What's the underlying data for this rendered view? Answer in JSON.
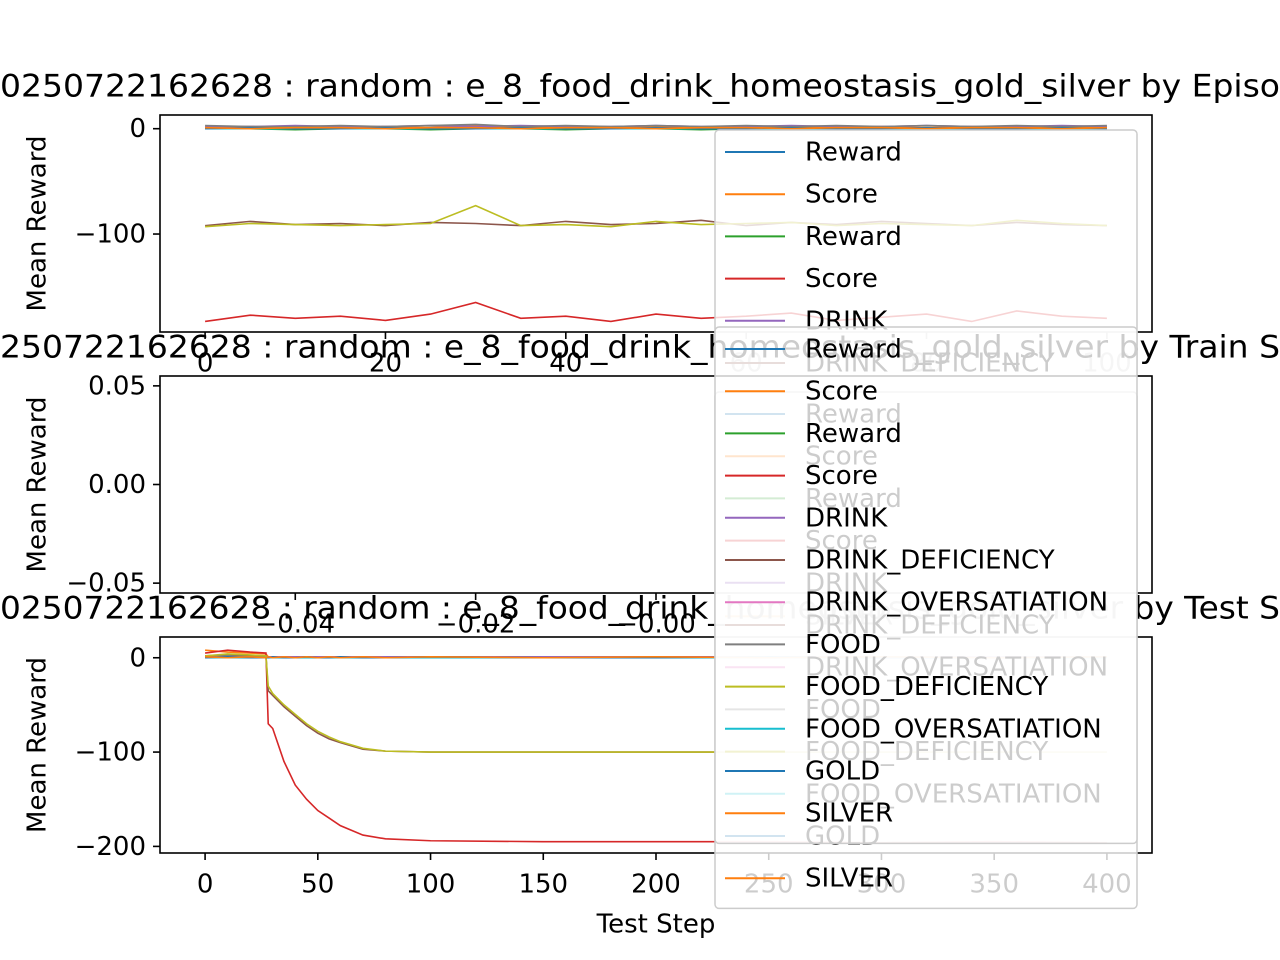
{
  "chart_data": [
    {
      "type": "line",
      "title": "0250722162628 : random : e_8_food_drink_homeostasis_gold_silver by Episo",
      "ylabel": "Mean Reward",
      "x": [
        0,
        5,
        10,
        15,
        20,
        25,
        30,
        35,
        40,
        45,
        50,
        55,
        60,
        65,
        70,
        75,
        80,
        85,
        90,
        95,
        100
      ],
      "xlim": [
        -5,
        105
      ],
      "xticks": [
        0,
        20,
        40,
        60,
        80,
        100
      ],
      "ylim": [
        -193,
        13
      ],
      "yticks": [
        0,
        {
          "value": -100,
          "label": "−100"
        }
      ],
      "legend": "upper right",
      "series": [
        {
          "name": "Reward",
          "color": "#1f77b4",
          "values": [
            0,
            1,
            0,
            1,
            0,
            1,
            2,
            0,
            1,
            0,
            1,
            0,
            1,
            2,
            0,
            1,
            0,
            1,
            0,
            1,
            1
          ]
        },
        {
          "name": "Score",
          "color": "#ff7f0e",
          "values": [
            1,
            2,
            1,
            1,
            2,
            1,
            3,
            1,
            2,
            1,
            2,
            1,
            1,
            2,
            1,
            2,
            1,
            2,
            1,
            1,
            2
          ]
        },
        {
          "name": "Reward",
          "color": "#2ca02c",
          "values": [
            0,
            0,
            -1,
            0,
            0,
            -1,
            0,
            0,
            -1,
            0,
            0,
            -1,
            0,
            0,
            -1,
            0,
            0,
            -1,
            0,
            0,
            -1
          ]
        },
        {
          "name": "Score",
          "color": "#d62728",
          "values": [
            -183,
            -177,
            -180,
            -178,
            -182,
            -176,
            -165,
            -180,
            -178,
            -183,
            -176,
            -180,
            -178,
            -175,
            -182,
            -179,
            -176,
            -183,
            -173,
            -178,
            -180
          ]
        },
        {
          "name": "DRINK",
          "color": "#9467bd",
          "values": [
            2,
            2,
            3,
            2,
            2,
            3,
            2,
            3,
            2,
            2,
            3,
            2,
            2,
            3,
            2,
            2,
            3,
            2,
            2,
            3,
            2
          ]
        },
        {
          "name": "DRINK_DEFICIENCY",
          "color": "#8c564b",
          "values": [
            -92,
            -88,
            -91,
            -90,
            -92,
            -89,
            -90,
            -92,
            -88,
            -91,
            -90,
            -87,
            -92,
            -89,
            -91,
            -88,
            -90,
            -92,
            -89,
            -91,
            -92
          ]
        },
        {
          "name": "DRINK_OVERSATIATION",
          "color": "#e377c2",
          "values": [
            0,
            0,
            0,
            0,
            0,
            0,
            0,
            0,
            0,
            0,
            0,
            0,
            0,
            0,
            0,
            0,
            0,
            0,
            0,
            0,
            0
          ]
        },
        {
          "name": "FOOD",
          "color": "#7f7f7f",
          "values": [
            3,
            2,
            2,
            3,
            2,
            3,
            4,
            2,
            3,
            2,
            3,
            2,
            3,
            2,
            3,
            2,
            3,
            2,
            3,
            2,
            3
          ]
        },
        {
          "name": "FOOD_DEFICIENCY",
          "color": "#bcbd22",
          "values": [
            -93,
            -90,
            -91,
            -92,
            -91,
            -90,
            -73,
            -92,
            -91,
            -93,
            -88,
            -91,
            -90,
            -89,
            -92,
            -90,
            -91,
            -92,
            -87,
            -90,
            -92
          ]
        },
        {
          "name": "FOOD_OVERSATIATION",
          "color": "#17becf",
          "values": [
            0,
            0,
            0,
            0,
            0,
            0,
            0,
            0,
            0,
            0,
            0,
            0,
            0,
            0,
            0,
            0,
            0,
            0,
            0,
            0,
            0
          ]
        },
        {
          "name": "GOLD",
          "color": "#1f77b4",
          "values": [
            0,
            1,
            0,
            0,
            1,
            0,
            0,
            1,
            0,
            0,
            1,
            0,
            0,
            1,
            0,
            0,
            1,
            0,
            0,
            1,
            0
          ]
        },
        {
          "name": "SILVER",
          "color": "#ff7f0e",
          "values": [
            1,
            0,
            1,
            1,
            0,
            1,
            1,
            0,
            1,
            1,
            0,
            1,
            1,
            0,
            1,
            1,
            0,
            1,
            1,
            0,
            1
          ]
        }
      ]
    },
    {
      "type": "line",
      "title": "250722162628 : random : e_8_food_drink_homeostasis_gold_silver by Train S",
      "ylabel": "Mean Reward",
      "x": [],
      "xlim": [
        -0.055,
        0.055
      ],
      "xticks": [
        {
          "value": -0.04,
          "label": "−0.04"
        },
        {
          "value": -0.02,
          "label": "−0.02"
        },
        {
          "value": 0,
          "label": "−0.00"
        }
      ],
      "ylim": [
        -0.055,
        0.055
      ],
      "yticks": [
        {
          "value": -0.05,
          "label": "−0.05"
        },
        {
          "value": 0,
          "label": "0.00"
        },
        {
          "value": 0.05,
          "label": "0.05"
        }
      ],
      "legend": "upper right",
      "series": [
        {
          "name": "Reward",
          "color": "#1f77b4",
          "values": []
        },
        {
          "name": "Score",
          "color": "#ff7f0e",
          "values": []
        },
        {
          "name": "Reward",
          "color": "#2ca02c",
          "values": []
        },
        {
          "name": "Score",
          "color": "#d62728",
          "values": []
        },
        {
          "name": "DRINK",
          "color": "#9467bd",
          "values": []
        },
        {
          "name": "DRINK_DEFICIENCY",
          "color": "#8c564b",
          "values": []
        },
        {
          "name": "DRINK_OVERSATIATION",
          "color": "#e377c2",
          "values": []
        },
        {
          "name": "FOOD",
          "color": "#7f7f7f",
          "values": []
        },
        {
          "name": "FOOD_DEFICIENCY",
          "color": "#bcbd22",
          "values": []
        },
        {
          "name": "FOOD_OVERSATIATION",
          "color": "#17becf",
          "values": []
        },
        {
          "name": "GOLD",
          "color": "#1f77b4",
          "values": []
        },
        {
          "name": "SILVER",
          "color": "#ff7f0e",
          "values": []
        }
      ]
    },
    {
      "type": "line",
      "title": "0250722162628 : random : e_8_food_drink_homeostasis_gold_silver by Test S",
      "ylabel": "Mean Reward",
      "xlabel": "Test Step",
      "x": [
        0,
        10,
        20,
        27,
        28,
        30,
        35,
        40,
        45,
        50,
        55,
        60,
        70,
        80,
        100,
        150,
        200,
        250,
        300,
        350,
        400
      ],
      "xlim": [
        -20,
        420
      ],
      "xticks": [
        0,
        50,
        100,
        150,
        200,
        250,
        300,
        350,
        400
      ],
      "ylim": [
        -207,
        22
      ],
      "yticks": [
        0,
        {
          "value": -100,
          "label": "−100"
        },
        {
          "value": -200,
          "label": "−200"
        }
      ],
      "legend": "upper right",
      "series": [
        {
          "name": "Reward",
          "color": "#1f77b4",
          "values": [
            0,
            0,
            0,
            0,
            0,
            0,
            0,
            0,
            0,
            0,
            0,
            0,
            0,
            0,
            0,
            0,
            0,
            0,
            0,
            0,
            0
          ]
        },
        {
          "name": "Score",
          "color": "#ff7f0e",
          "values": [
            8,
            6,
            5,
            4,
            1,
            1,
            1,
            1,
            1,
            1,
            1,
            1,
            1,
            1,
            1,
            1,
            1,
            1,
            1,
            1,
            1
          ]
        },
        {
          "name": "Reward",
          "color": "#2ca02c",
          "values": [
            0,
            0,
            0,
            0,
            0,
            0,
            0,
            0,
            0,
            0,
            0,
            0,
            0,
            0,
            0,
            0,
            0,
            0,
            0,
            0,
            0
          ]
        },
        {
          "name": "Score",
          "color": "#d62728",
          "values": [
            5,
            8,
            6,
            5,
            -70,
            -75,
            -110,
            -135,
            -150,
            -162,
            -170,
            -178,
            -188,
            -192,
            -194,
            -195,
            -195,
            -195,
            -196,
            -195,
            -196
          ]
        },
        {
          "name": "DRINK",
          "color": "#9467bd",
          "values": [
            1,
            1,
            1,
            1,
            1,
            1,
            1,
            1,
            1,
            1,
            1,
            1,
            1,
            1,
            1,
            1,
            1,
            1,
            1,
            1,
            1
          ]
        },
        {
          "name": "DRINK_DEFICIENCY",
          "color": "#8c564b",
          "values": [
            2,
            3,
            2,
            2,
            -35,
            -40,
            -52,
            -62,
            -72,
            -80,
            -86,
            -90,
            -97,
            -99,
            -100,
            -100,
            -100,
            -100,
            -100,
            -100,
            -100
          ]
        },
        {
          "name": "DRINK_OVERSATIATION",
          "color": "#e377c2",
          "values": [
            0,
            0,
            0,
            0,
            0,
            0,
            0,
            0,
            0,
            0,
            0,
            0,
            0,
            0,
            0,
            0,
            0,
            0,
            0,
            0,
            0
          ]
        },
        {
          "name": "FOOD",
          "color": "#7f7f7f",
          "values": [
            1,
            2,
            1,
            1,
            0,
            0,
            0,
            0,
            0,
            0,
            0,
            0,
            0,
            0,
            0,
            0,
            0,
            0,
            0,
            0,
            0
          ]
        },
        {
          "name": "FOOD_DEFICIENCY",
          "color": "#bcbd22",
          "values": [
            2,
            4,
            3,
            2,
            -30,
            -38,
            -50,
            -60,
            -70,
            -78,
            -84,
            -89,
            -96,
            -99,
            -100,
            -100,
            -100,
            -100,
            -100,
            -100,
            -100
          ]
        },
        {
          "name": "FOOD_OVERSATIATION",
          "color": "#17becf",
          "values": [
            0,
            0,
            0,
            0,
            0,
            0,
            0,
            0,
            0,
            0,
            0,
            0,
            0,
            0,
            0,
            0,
            0,
            0,
            0,
            0,
            0
          ]
        },
        {
          "name": "GOLD",
          "color": "#1f77b4",
          "values": [
            0,
            1,
            0,
            0,
            0,
            1,
            0,
            0,
            1,
            0,
            0,
            1,
            0,
            0,
            1,
            0,
            0,
            1,
            0,
            0,
            1
          ]
        },
        {
          "name": "SILVER",
          "color": "#ff7f0e",
          "values": [
            1,
            0,
            1,
            0,
            1,
            0,
            1,
            0,
            1,
            0,
            1,
            0,
            1,
            0,
            1,
            0,
            1,
            0,
            1,
            0,
            1
          ]
        }
      ]
    }
  ]
}
